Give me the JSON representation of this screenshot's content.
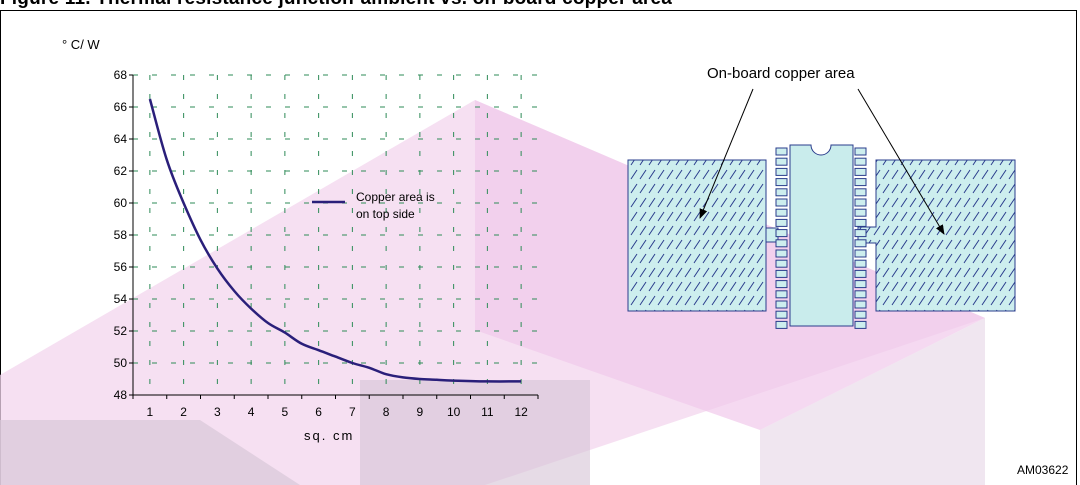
{
  "header": {
    "title": "Figure 11. Thermal resistance junction-ambient vs. on-board copper area"
  },
  "chart_data": {
    "type": "line",
    "ylabel": "° C/ W",
    "xlabel": "sq. cm",
    "xlim": [
      1,
      12
    ],
    "ylim": [
      48,
      68
    ],
    "x_ticks": [
      "1",
      "2",
      "3",
      "4",
      "5",
      "6",
      "7",
      "8",
      "9",
      "10",
      "11",
      "12"
    ],
    "y_ticks": [
      "48",
      "50",
      "52",
      "54",
      "56",
      "58",
      "60",
      "62",
      "64",
      "66",
      "68"
    ],
    "grid": true,
    "series": [
      {
        "name": "Copper area is on top side",
        "x": [
          1,
          1.5,
          2,
          2.5,
          3,
          3.5,
          4,
          4.5,
          5,
          5.5,
          6,
          6.5,
          7,
          7.5,
          8,
          8.5,
          9,
          9.5,
          10,
          11,
          12
        ],
        "y": [
          66.5,
          62.7,
          60.0,
          57.7,
          55.9,
          54.5,
          53.4,
          52.5,
          51.9,
          51.2,
          50.8,
          50.4,
          50.0,
          49.7,
          49.3,
          49.1,
          49.0,
          48.95,
          48.9,
          48.85,
          48.85
        ]
      }
    ],
    "legend": {
      "lines": [
        "Copper area is",
        "on top side"
      ],
      "position": "center-right"
    },
    "color": "#2a1f7a"
  },
  "diagram": {
    "label": "On-board copper area",
    "code": "AM03622"
  }
}
